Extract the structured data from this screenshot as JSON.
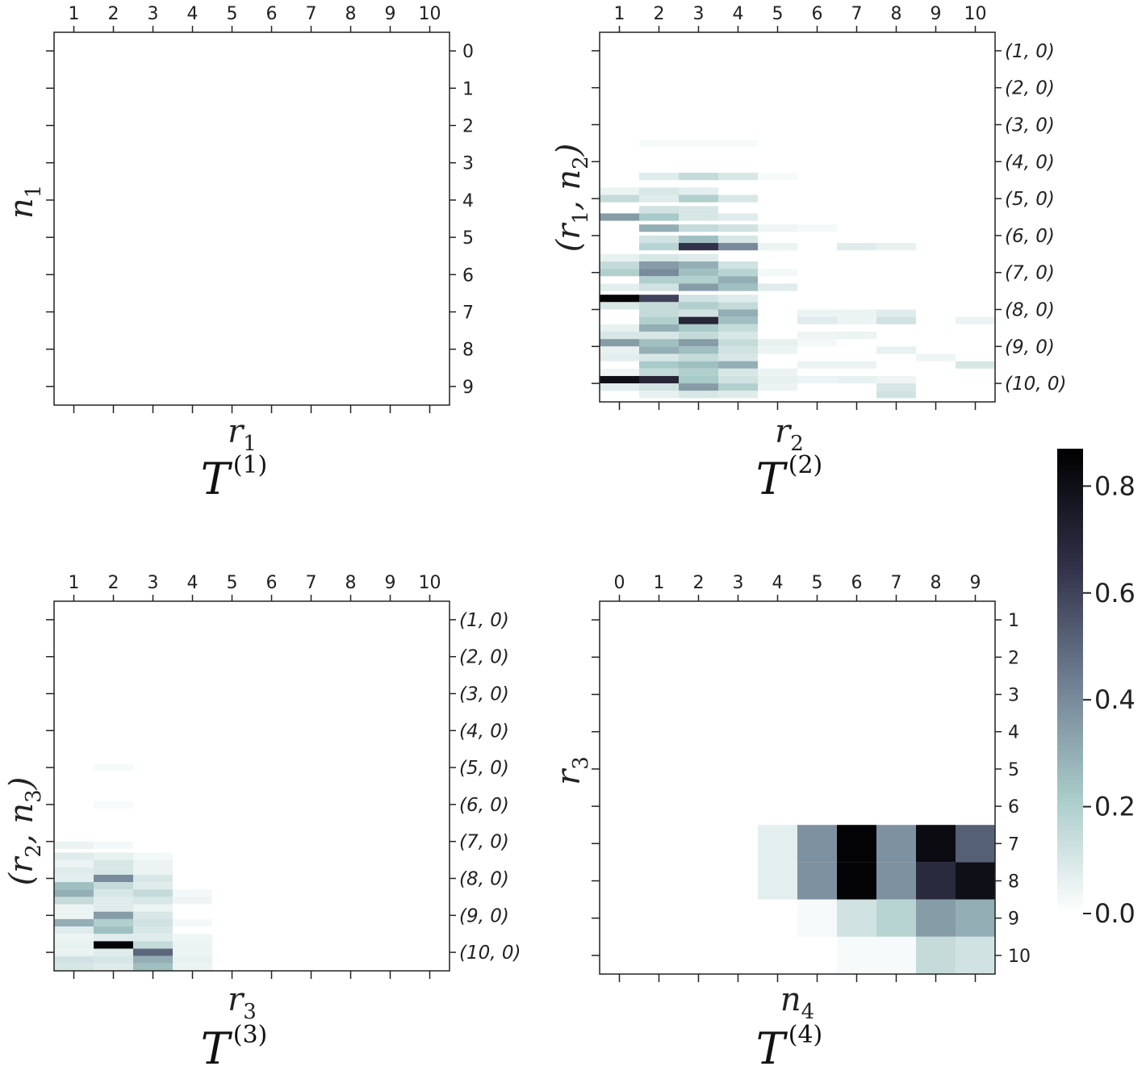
{
  "chart_data": [
    {
      "type": "heatmap",
      "panel": "T1",
      "title": "T",
      "title_sup": "(1)",
      "xlabel": "r",
      "xlabel_sub": "1",
      "ylabel": "n",
      "ylabel_sub": "1",
      "ylabel_form": "plain",
      "x_ticks": [
        "1",
        "2",
        "3",
        "4",
        "5",
        "6",
        "7",
        "8",
        "9",
        "10"
      ],
      "y_ticks": [
        "0",
        "1",
        "2",
        "3",
        "4",
        "5",
        "6",
        "7",
        "8",
        "9"
      ],
      "y_ticks_italic": false,
      "cells": []
    },
    {
      "type": "heatmap",
      "panel": "T2",
      "title": "T",
      "title_sup": "(2)",
      "xlabel": "r",
      "xlabel_sub": "2",
      "ylabel": "r",
      "ylabel_sub": "1",
      "ylabel2": "n",
      "ylabel2_sub": "2",
      "ylabel_form": "pair",
      "x_ticks": [
        "1",
        "2",
        "3",
        "4",
        "5",
        "6",
        "7",
        "8",
        "9",
        "10"
      ],
      "y_ticks": [
        "(1, 0)",
        "(2, 0)",
        "(3, 0)",
        "(4, 0)",
        "(5, 0)",
        "(6, 0)",
        "(7, 0)",
        "(8, 0)",
        "(9, 0)",
        "(10, 0)"
      ],
      "y_ticks_italic": true,
      "cells": [
        [
          2,
          3.5,
          0.02
        ],
        [
          3,
          3.5,
          0.02
        ],
        [
          4,
          3.5,
          0.02
        ],
        [
          2,
          4.4,
          0.08
        ],
        [
          3,
          4.4,
          0.15
        ],
        [
          4,
          4.4,
          0.1
        ],
        [
          5,
          4.4,
          0.02
        ],
        [
          1,
          4.8,
          0.05
        ],
        [
          2,
          4.8,
          0.1
        ],
        [
          3,
          4.8,
          0.07
        ],
        [
          1,
          5.0,
          0.15
        ],
        [
          2,
          5.0,
          0.08
        ],
        [
          3,
          5.0,
          0.2
        ],
        [
          4,
          5.0,
          0.1
        ],
        [
          2,
          5.3,
          0.12
        ],
        [
          3,
          5.3,
          0.1
        ],
        [
          1,
          5.5,
          0.35
        ],
        [
          2,
          5.5,
          0.22
        ],
        [
          3,
          5.5,
          0.1
        ],
        [
          4,
          5.5,
          0.08
        ],
        [
          2,
          5.8,
          0.3
        ],
        [
          3,
          5.8,
          0.15
        ],
        [
          4,
          5.8,
          0.12
        ],
        [
          5,
          5.8,
          0.04
        ],
        [
          6,
          5.8,
          0.03
        ],
        [
          2,
          6.1,
          0.12
        ],
        [
          3,
          6.1,
          0.25
        ],
        [
          4,
          6.1,
          0.1
        ],
        [
          2,
          6.3,
          0.18
        ],
        [
          3,
          6.3,
          0.65
        ],
        [
          4,
          6.3,
          0.4
        ],
        [
          5,
          6.3,
          0.05
        ],
        [
          7,
          6.3,
          0.08
        ],
        [
          8,
          6.3,
          0.06
        ],
        [
          1,
          6.6,
          0.06
        ],
        [
          2,
          6.6,
          0.1
        ],
        [
          3,
          6.6,
          0.08
        ],
        [
          1,
          6.8,
          0.15
        ],
        [
          2,
          6.8,
          0.35
        ],
        [
          3,
          6.8,
          0.3
        ],
        [
          4,
          6.8,
          0.12
        ],
        [
          1,
          7.0,
          0.2
        ],
        [
          2,
          7.0,
          0.4
        ],
        [
          3,
          7.0,
          0.25
        ],
        [
          4,
          7.0,
          0.18
        ],
        [
          5,
          7.0,
          0.03
        ],
        [
          2,
          7.2,
          0.2
        ],
        [
          3,
          7.2,
          0.2
        ],
        [
          4,
          7.2,
          0.3
        ],
        [
          1,
          7.4,
          0.07
        ],
        [
          2,
          7.4,
          0.12
        ],
        [
          3,
          7.4,
          0.35
        ],
        [
          4,
          7.4,
          0.25
        ],
        [
          5,
          7.4,
          0.08
        ],
        [
          1,
          7.7,
          0.85
        ],
        [
          2,
          7.7,
          0.6
        ],
        [
          3,
          7.7,
          0.12
        ],
        [
          4,
          7.7,
          0.08
        ],
        [
          1,
          7.9,
          0.1
        ],
        [
          2,
          7.9,
          0.15
        ],
        [
          3,
          7.9,
          0.2
        ],
        [
          4,
          7.9,
          0.15
        ],
        [
          2,
          8.1,
          0.15
        ],
        [
          3,
          8.1,
          0.12
        ],
        [
          4,
          8.1,
          0.3
        ],
        [
          6,
          8.1,
          0.05
        ],
        [
          7,
          8.1,
          0.05
        ],
        [
          8,
          8.1,
          0.08
        ],
        [
          2,
          8.3,
          0.2
        ],
        [
          3,
          8.3,
          0.7
        ],
        [
          4,
          8.3,
          0.25
        ],
        [
          6,
          8.3,
          0.08
        ],
        [
          7,
          8.3,
          0.05
        ],
        [
          8,
          8.3,
          0.12
        ],
        [
          10,
          8.3,
          0.05
        ],
        [
          1,
          8.5,
          0.06
        ],
        [
          2,
          8.5,
          0.3
        ],
        [
          3,
          8.5,
          0.22
        ],
        [
          4,
          8.5,
          0.15
        ],
        [
          1,
          8.7,
          0.1
        ],
        [
          2,
          8.7,
          0.1
        ],
        [
          3,
          8.7,
          0.15
        ],
        [
          4,
          8.7,
          0.1
        ],
        [
          6,
          8.7,
          0.04
        ],
        [
          7,
          8.7,
          0.05
        ],
        [
          1,
          8.9,
          0.35
        ],
        [
          2,
          8.9,
          0.25
        ],
        [
          3,
          8.9,
          0.35
        ],
        [
          4,
          8.9,
          0.15
        ],
        [
          5,
          8.9,
          0.06
        ],
        [
          6,
          8.9,
          0.03
        ],
        [
          1,
          9.1,
          0.06
        ],
        [
          2,
          9.1,
          0.3
        ],
        [
          3,
          9.1,
          0.25
        ],
        [
          4,
          9.1,
          0.12
        ],
        [
          5,
          9.1,
          0.05
        ],
        [
          8,
          9.1,
          0.06
        ],
        [
          1,
          9.3,
          0.07
        ],
        [
          2,
          9.3,
          0.1
        ],
        [
          3,
          9.3,
          0.15
        ],
        [
          4,
          9.3,
          0.1
        ],
        [
          9,
          9.3,
          0.04
        ],
        [
          2,
          9.5,
          0.22
        ],
        [
          3,
          9.5,
          0.25
        ],
        [
          4,
          9.5,
          0.3
        ],
        [
          6,
          9.5,
          0.05
        ],
        [
          7,
          9.5,
          0.05
        ],
        [
          10,
          9.5,
          0.1
        ],
        [
          1,
          9.7,
          0.04
        ],
        [
          2,
          9.7,
          0.15
        ],
        [
          3,
          9.7,
          0.2
        ],
        [
          4,
          9.7,
          0.1
        ],
        [
          5,
          9.7,
          0.05
        ],
        [
          1,
          9.9,
          0.8
        ],
        [
          2,
          9.9,
          0.7
        ],
        [
          3,
          9.9,
          0.22
        ],
        [
          4,
          9.9,
          0.12
        ],
        [
          5,
          9.9,
          0.06
        ],
        [
          6,
          9.9,
          0.05
        ],
        [
          7,
          9.9,
          0.06
        ],
        [
          8,
          9.9,
          0.04
        ],
        [
          1,
          10.1,
          0.08
        ],
        [
          2,
          10.1,
          0.12
        ],
        [
          3,
          10.1,
          0.35
        ],
        [
          4,
          10.1,
          0.2
        ],
        [
          5,
          10.1,
          0.05
        ],
        [
          8,
          10.1,
          0.1
        ],
        [
          2,
          10.3,
          0.06
        ],
        [
          3,
          10.3,
          0.1
        ],
        [
          4,
          10.3,
          0.08
        ],
        [
          8,
          10.3,
          0.12
        ]
      ]
    },
    {
      "type": "heatmap",
      "panel": "T3",
      "title": "T",
      "title_sup": "(3)",
      "xlabel": "r",
      "xlabel_sub": "3",
      "ylabel": "r",
      "ylabel_sub": "2",
      "ylabel2": "n",
      "ylabel2_sub": "3",
      "ylabel_form": "pair",
      "x_ticks": [
        "1",
        "2",
        "3",
        "4",
        "5",
        "6",
        "7",
        "8",
        "9",
        "10"
      ],
      "y_ticks": [
        "(1, 0)",
        "(2, 0)",
        "(3, 0)",
        "(4, 0)",
        "(5, 0)",
        "(6, 0)",
        "(7, 0)",
        "(8, 0)",
        "(9, 0)",
        "(10, 0)"
      ],
      "y_ticks_italic": true,
      "cells": [
        [
          2,
          5.0,
          0.02
        ],
        [
          2,
          6.0,
          0.02
        ],
        [
          1,
          7.1,
          0.05
        ],
        [
          2,
          7.1,
          0.03
        ],
        [
          1,
          7.4,
          0.08
        ],
        [
          2,
          7.4,
          0.06
        ],
        [
          3,
          7.4,
          0.03
        ],
        [
          1,
          7.6,
          0.05
        ],
        [
          2,
          7.6,
          0.1
        ],
        [
          3,
          7.6,
          0.05
        ],
        [
          1,
          7.8,
          0.08
        ],
        [
          2,
          7.8,
          0.1
        ],
        [
          3,
          7.8,
          0.05
        ],
        [
          1,
          8.0,
          0.07
        ],
        [
          2,
          8.0,
          0.4
        ],
        [
          3,
          8.0,
          0.1
        ],
        [
          1,
          8.2,
          0.25
        ],
        [
          2,
          8.2,
          0.15
        ],
        [
          3,
          8.2,
          0.08
        ],
        [
          1,
          8.4,
          0.3
        ],
        [
          2,
          8.4,
          0.1
        ],
        [
          3,
          8.4,
          0.15
        ],
        [
          4,
          8.4,
          0.03
        ],
        [
          1,
          8.6,
          0.15
        ],
        [
          2,
          8.6,
          0.08
        ],
        [
          3,
          8.6,
          0.1
        ],
        [
          4,
          8.6,
          0.04
        ],
        [
          1,
          8.8,
          0.05
        ],
        [
          2,
          8.8,
          0.08
        ],
        [
          3,
          8.8,
          0.05
        ],
        [
          1,
          9.0,
          0.05
        ],
        [
          2,
          9.0,
          0.35
        ],
        [
          3,
          9.0,
          0.1
        ],
        [
          1,
          9.2,
          0.3
        ],
        [
          2,
          9.2,
          0.2
        ],
        [
          3,
          9.2,
          0.12
        ],
        [
          4,
          9.2,
          0.03
        ],
        [
          1,
          9.4,
          0.08
        ],
        [
          2,
          9.4,
          0.25
        ],
        [
          3,
          9.4,
          0.1
        ],
        [
          1,
          9.6,
          0.05
        ],
        [
          2,
          9.6,
          0.08
        ],
        [
          3,
          9.6,
          0.08
        ],
        [
          4,
          9.6,
          0.04
        ],
        [
          1,
          9.8,
          0.06
        ],
        [
          2,
          9.8,
          0.85
        ],
        [
          3,
          9.8,
          0.15
        ],
        [
          4,
          9.8,
          0.05
        ],
        [
          1,
          10.0,
          0.05
        ],
        [
          2,
          10.0,
          0.08
        ],
        [
          3,
          10.0,
          0.5
        ],
        [
          4,
          10.0,
          0.05
        ],
        [
          1,
          10.2,
          0.12
        ],
        [
          2,
          10.2,
          0.1
        ],
        [
          3,
          10.2,
          0.3
        ],
        [
          4,
          10.2,
          0.06
        ],
        [
          1,
          10.4,
          0.1
        ],
        [
          2,
          10.4,
          0.08
        ],
        [
          3,
          10.4,
          0.25
        ],
        [
          4,
          10.4,
          0.05
        ]
      ]
    },
    {
      "type": "heatmap",
      "panel": "T4",
      "title": "T",
      "title_sup": "(4)",
      "xlabel": "n",
      "xlabel_sub": "4",
      "ylabel": "r",
      "ylabel_sub": "3",
      "ylabel_form": "plain",
      "x_ticks": [
        "0",
        "1",
        "2",
        "3",
        "4",
        "5",
        "6",
        "7",
        "8",
        "9"
      ],
      "y_ticks": [
        "1",
        "2",
        "3",
        "4",
        "5",
        "6",
        "7",
        "8",
        "9",
        "10"
      ],
      "y_ticks_italic": false,
      "cells": [
        [
          4,
          7.5,
          0.07
        ],
        [
          5,
          7.5,
          0.38
        ],
        [
          6,
          7.5,
          0.85
        ],
        [
          7,
          7.5,
          0.38
        ],
        [
          8,
          7.5,
          0.82
        ],
        [
          9,
          7.5,
          0.52
        ],
        [
          4,
          8.5,
          0.07
        ],
        [
          5,
          8.5,
          0.38
        ],
        [
          6,
          8.5,
          0.85
        ],
        [
          7,
          8.5,
          0.38
        ],
        [
          8,
          8.5,
          0.68
        ],
        [
          9,
          8.5,
          0.8
        ],
        [
          5,
          9.5,
          0.02
        ],
        [
          6,
          9.5,
          0.12
        ],
        [
          7,
          9.5,
          0.18
        ],
        [
          8,
          9.5,
          0.35
        ],
        [
          9,
          9.5,
          0.3
        ],
        [
          6,
          10.5,
          0.02
        ],
        [
          7,
          10.5,
          0.02
        ],
        [
          8,
          10.5,
          0.15
        ],
        [
          9,
          10.5,
          0.12
        ]
      ]
    }
  ],
  "colorbar": {
    "ticks": [
      "0.0",
      "0.2",
      "0.4",
      "0.6",
      "0.8"
    ],
    "tick_values": [
      0,
      0.2,
      0.4,
      0.6,
      0.8
    ],
    "vmin": 0,
    "vmax": 0.87,
    "colormap": "bone_r",
    "stops": [
      {
        "v": 0.0,
        "color": "#ffffff"
      },
      {
        "v": 0.25,
        "color": "#a9cbc9"
      },
      {
        "v": 0.5,
        "color": "#6f7e92"
      },
      {
        "v": 0.75,
        "color": "#303048"
      },
      {
        "v": 1.0,
        "color": "#000000"
      }
    ]
  }
}
